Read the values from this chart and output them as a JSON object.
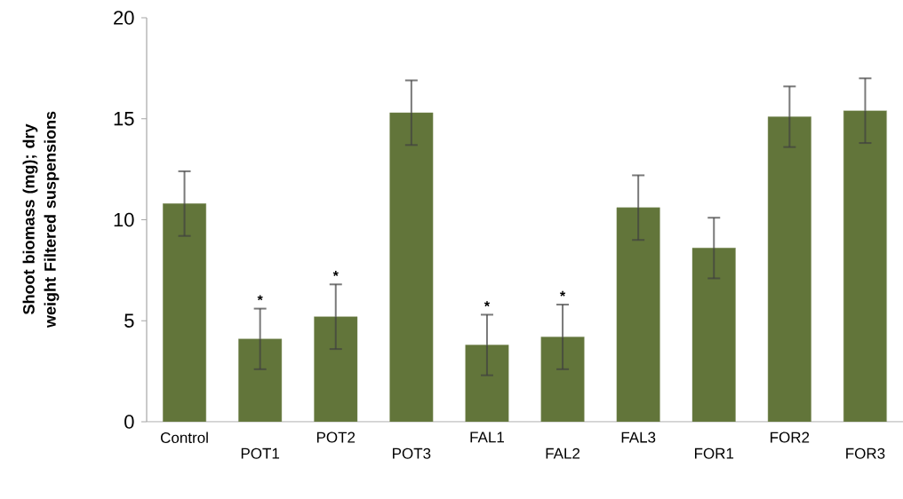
{
  "chart_data": {
    "type": "bar",
    "ylabel": "Shoot biomass (mg); dry weight Filtered suspensions",
    "categories": [
      "Control",
      "POT1",
      "POT2",
      "POT3",
      "FAL1",
      "FAL2",
      "FAL3",
      "FOR1",
      "FOR2",
      "FOR3"
    ],
    "values": [
      10.8,
      4.1,
      5.2,
      15.3,
      3.8,
      4.2,
      10.6,
      8.6,
      15.1,
      15.4
    ],
    "errors": [
      1.6,
      1.5,
      1.6,
      1.6,
      1.5,
      1.6,
      1.6,
      1.5,
      1.5,
      1.6
    ],
    "color": "#62753a",
    "ylim": [
      0,
      20
    ],
    "yticks": [
      0,
      5,
      10,
      15,
      20
    ],
    "annotations": [
      {
        "text": "*",
        "x": "POT1",
        "y": 4.1
      },
      {
        "text": "*",
        "x": "POT2",
        "y": 5.2
      },
      {
        "text": "*",
        "x": "FAL1",
        "y": 3.8
      },
      {
        "text": "*",
        "x": "FAL2",
        "y": 4.2
      }
    ]
  }
}
